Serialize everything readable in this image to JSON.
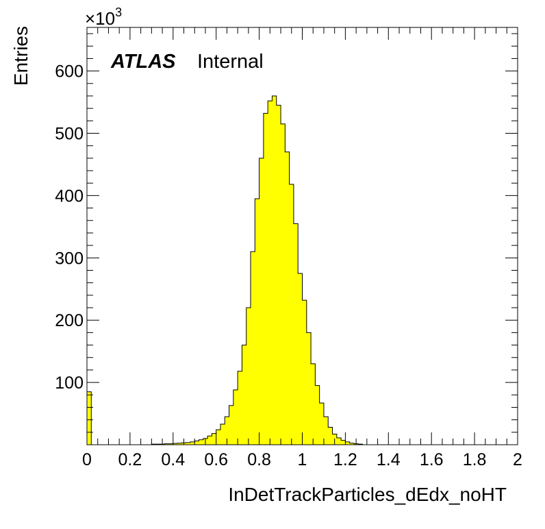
{
  "chart_data": {
    "type": "bar",
    "subtype": "histogram",
    "xlabel": "InDetTrackParticles_dEdx_noHT",
    "ylabel": "Entries",
    "y_multiplier_base": "×10",
    "y_multiplier_exp": "3",
    "experiment_label": "ATLAS",
    "status_label": "Internal",
    "xlim": [
      0,
      2
    ],
    "ylim": [
      0,
      670000
    ],
    "bin_width": 0.02,
    "x_ticks": [
      {
        "value": 0,
        "label": "0"
      },
      {
        "value": 0.2,
        "label": "0.2"
      },
      {
        "value": 0.4,
        "label": "0.4"
      },
      {
        "value": 0.6,
        "label": "0.6"
      },
      {
        "value": 0.8,
        "label": "0.8"
      },
      {
        "value": 1.0,
        "label": "1"
      },
      {
        "value": 1.2,
        "label": "1.2"
      },
      {
        "value": 1.4,
        "label": "1.4"
      },
      {
        "value": 1.6,
        "label": "1.6"
      },
      {
        "value": 1.8,
        "label": "1.8"
      },
      {
        "value": 2.0,
        "label": "2"
      }
    ],
    "y_ticks": [
      {
        "value": 100000,
        "label": "100"
      },
      {
        "value": 200000,
        "label": "200"
      },
      {
        "value": 300000,
        "label": "300"
      },
      {
        "value": 400000,
        "label": "400"
      },
      {
        "value": 500000,
        "label": "500"
      },
      {
        "value": 600000,
        "label": "600"
      }
    ],
    "fill_color": "#ffff00",
    "line_color": "#000000",
    "values": [
      85000,
      0,
      0,
      0,
      0,
      0,
      0,
      0,
      0,
      0,
      0,
      0,
      0,
      0,
      0,
      1000,
      1000,
      1000,
      1500,
      1500,
      2000,
      2500,
      3000,
      3500,
      4500,
      6000,
      8000,
      10000,
      14000,
      18000,
      24000,
      33000,
      45000,
      63000,
      88000,
      118000,
      160000,
      220000,
      310000,
      395000,
      460000,
      532000,
      552000,
      560000,
      545000,
      515000,
      470000,
      418000,
      355000,
      275000,
      232000,
      180000,
      130000,
      95000,
      67000,
      45000,
      28000,
      17000,
      11000,
      7000,
      4500,
      2500,
      1500,
      1000,
      0,
      0,
      0,
      0,
      0,
      0,
      0,
      0,
      0,
      0,
      0,
      0,
      0,
      0,
      0,
      0,
      0,
      0,
      0,
      0,
      0,
      0,
      0,
      0,
      0,
      0,
      0,
      0,
      0,
      0,
      0,
      0,
      0,
      0,
      0,
      0
    ]
  }
}
